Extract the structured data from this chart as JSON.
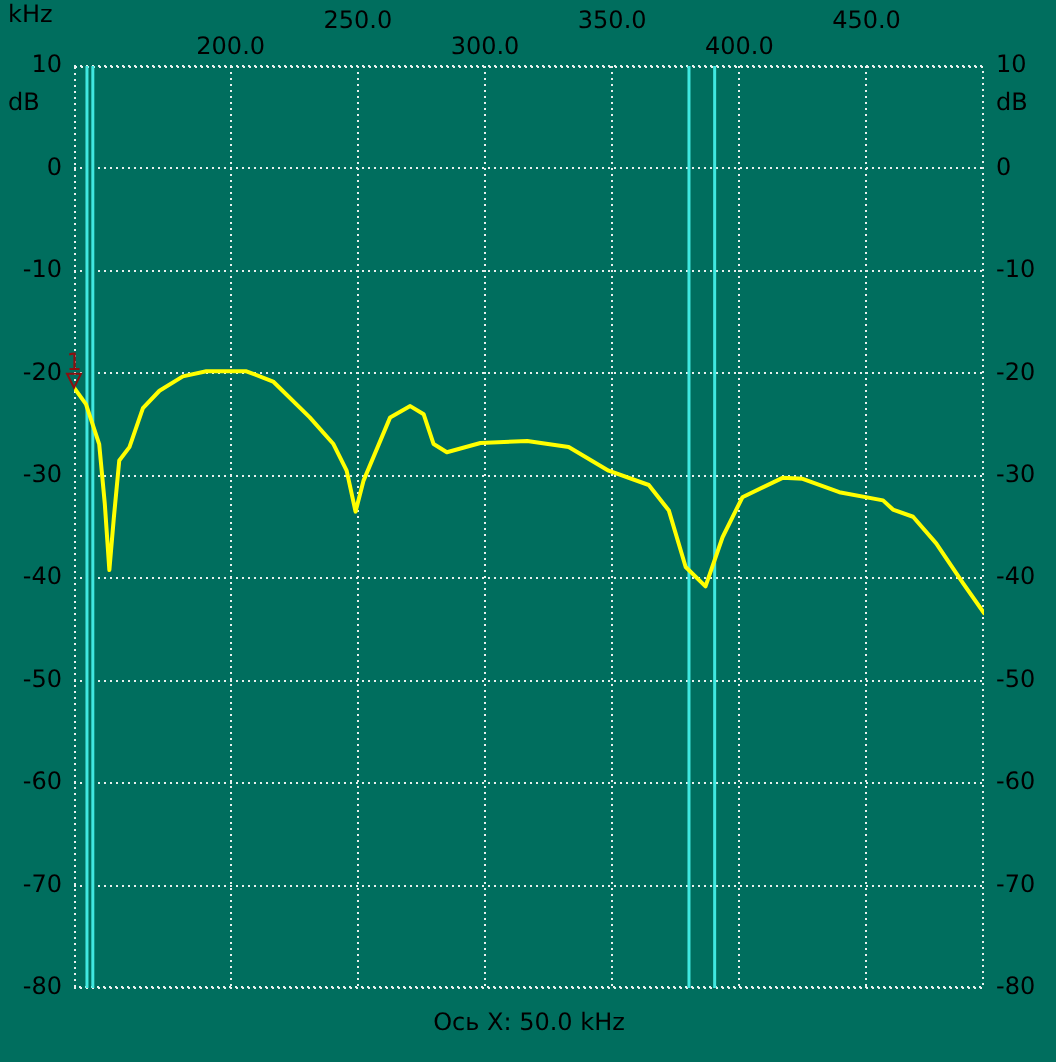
{
  "chart_data": {
    "type": "line",
    "xlabel": "kHz",
    "ylabel": "dB",
    "y2label": "dB",
    "xlim": [
      138.4,
      496.2
    ],
    "xticks": [
      {
        "value": 200,
        "label": "200.0"
      },
      {
        "value": 300,
        "label": "300.0"
      },
      {
        "value": 400,
        "label": "400.0"
      }
    ],
    "x2lim": [
      138.4,
      496.2
    ],
    "x2ticks": [
      {
        "value": 250,
        "label": "250.0"
      },
      {
        "value": 350,
        "label": "350.0"
      },
      {
        "value": 450,
        "label": "450.0"
      }
    ],
    "ylim": [
      -80,
      10
    ],
    "yticks": [
      -80,
      -70,
      -60,
      -50,
      -40,
      -30,
      -20,
      -10,
      0,
      10
    ],
    "y2lim": [
      -80,
      10
    ],
    "y2ticks": [
      -80,
      -70,
      -60,
      -50,
      -40,
      -30,
      -20,
      -10,
      0,
      10
    ],
    "x": [
      138.4,
      143.1,
      148.3,
      150.5,
      152.3,
      154.1,
      156.2,
      160.2,
      165.5,
      172.0,
      181.2,
      190.4,
      206.2,
      216.7,
      231.1,
      240.4,
      245.6,
      249.1,
      252.2,
      262.7,
      270.6,
      275.9,
      279.8,
      285.0,
      298.2,
      316.6,
      332.9,
      348.6,
      364.4,
      372.3,
      378.9,
      386.7,
      393.4,
      401.2,
      417.0,
      424.9,
      439.3,
      456.5,
      460.4,
      468.3,
      477.4,
      488.0,
      496.2
    ],
    "series": [
      {
        "color": "#ffff00",
        "values": [
          -21.4,
          -23.0,
          -26.9,
          -32.7,
          -39.2,
          -34.0,
          -28.5,
          -27.2,
          -23.4,
          -21.7,
          -20.3,
          -19.8,
          -19.8,
          -20.8,
          -24.3,
          -26.9,
          -29.5,
          -33.5,
          -30.5,
          -24.3,
          -23.2,
          -24.0,
          -26.9,
          -27.7,
          -26.8,
          -26.6,
          -27.2,
          -29.5,
          -30.9,
          -33.4,
          -38.9,
          -40.8,
          -36.0,
          -32.1,
          -30.2,
          -30.3,
          -31.6,
          -32.4,
          -33.3,
          -34.0,
          -36.6,
          -40.5,
          -43.4
        ]
      }
    ],
    "ref_lines": [
      {
        "axis": "x",
        "value": 143.5,
        "color": "#40e8e0"
      },
      {
        "axis": "x",
        "value": 145.8,
        "color": "#40e8e0"
      },
      {
        "axis": "x",
        "value": 380.2,
        "color": "#40e8e0"
      },
      {
        "axis": "x",
        "value": 390.3,
        "color": "#40e8e0"
      }
    ],
    "annotations": [
      {
        "text": "1",
        "x": 138.4,
        "y": -21.4
      },
      "Ось X: 50.0 kHz"
    ],
    "grid": true,
    "legend": false,
    "marker": "none",
    "line_style": "solid"
  }
}
